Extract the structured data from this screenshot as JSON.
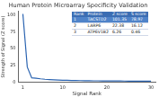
{
  "chart_data": {
    "type": "line",
    "title": "Human Protein Microarray Specificity Validation",
    "x_label": "Signal Rank",
    "y_label": "Strength of Signal (Z score)",
    "x": [
      1,
      2,
      3,
      4,
      5,
      6,
      7,
      8,
      9,
      10,
      11,
      12,
      13,
      14,
      15,
      16,
      17,
      18,
      19,
      20,
      21,
      22,
      23,
      24,
      25,
      26,
      27,
      28,
      29,
      30
    ],
    "values": [
      101.35,
      22.38,
      6.26,
      5.8,
      4.9,
      4.2,
      3.7,
      3.3,
      3.0,
      2.8,
      2.6,
      2.45,
      2.3,
      2.2,
      2.1,
      2.0,
      1.9,
      1.85,
      1.8,
      1.75,
      1.7,
      1.65,
      1.6,
      1.55,
      1.5,
      1.45,
      1.4,
      1.35,
      1.3,
      1.25
    ],
    "color": "#2a63b0",
    "xlim": [
      0,
      31
    ],
    "xticks": [
      1,
      10,
      20,
      30
    ],
    "ylim": [
      0,
      105
    ],
    "yticks": [
      0,
      25,
      50,
      75,
      100
    ],
    "grid": false
  },
  "table": {
    "header": [
      "Rank",
      "Protein",
      "Z score",
      "S score"
    ],
    "rows": [
      [
        1,
        "TACSTD2",
        101.35,
        78.97
      ],
      [
        2,
        "LARP6",
        22.38,
        16.12
      ],
      [
        3,
        "ATP6V1B2",
        6.26,
        0.46
      ]
    ]
  }
}
